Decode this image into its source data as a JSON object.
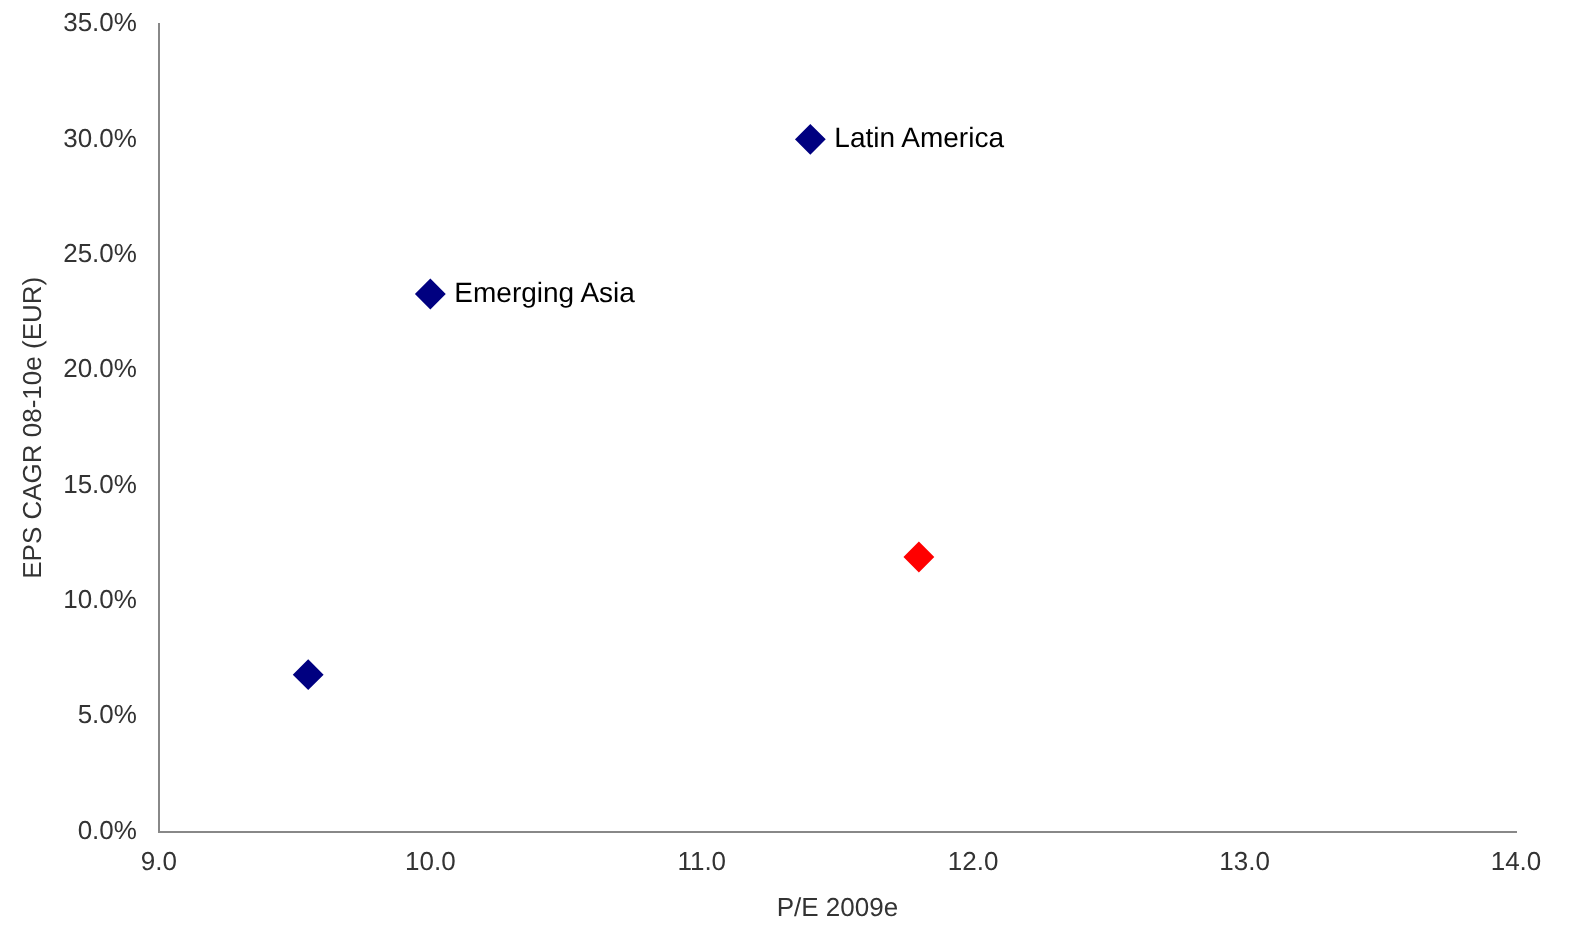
{
  "chart_data": {
    "type": "scatter",
    "xlabel": "P/E 2009e",
    "ylabel": "EPS CAGR 08-10e (EUR)",
    "marker": "diamond",
    "grid": false,
    "legend": false,
    "xlim": [
      9,
      14
    ],
    "xticks": [
      {
        "value": 9,
        "label": "9.0"
      },
      {
        "value": 10,
        "label": "10.0"
      },
      {
        "value": 11,
        "label": "11.0"
      },
      {
        "value": 12,
        "label": "12.0"
      },
      {
        "value": 13,
        "label": "13.0"
      },
      {
        "value": 14,
        "label": "14.0"
      }
    ],
    "ylim": [
      0,
      35
    ],
    "yticks": [
      {
        "value": 0,
        "label": "0.0%"
      },
      {
        "value": 5,
        "label": "5.0%"
      },
      {
        "value": 10,
        "label": "10.0%"
      },
      {
        "value": 15,
        "label": "15.0%"
      },
      {
        "value": 20,
        "label": "20.0%"
      },
      {
        "value": 25,
        "label": "25.0%"
      },
      {
        "value": 30,
        "label": "30.0%"
      },
      {
        "value": 35,
        "label": "35.0%"
      }
    ],
    "series": [
      {
        "name": "Latin America",
        "color": "#000080",
        "x": [
          11.4
        ],
        "values": [
          30.0
        ]
      },
      {
        "name": "Emerging Asia",
        "color": "#000080",
        "x": [
          10.0
        ],
        "values": [
          23.3
        ]
      },
      {
        "color": "#000080",
        "x": [
          9.55
        ],
        "values": [
          6.8
        ]
      },
      {
        "color": "#ff0000",
        "x": [
          11.8
        ],
        "values": [
          11.9
        ]
      }
    ]
  }
}
